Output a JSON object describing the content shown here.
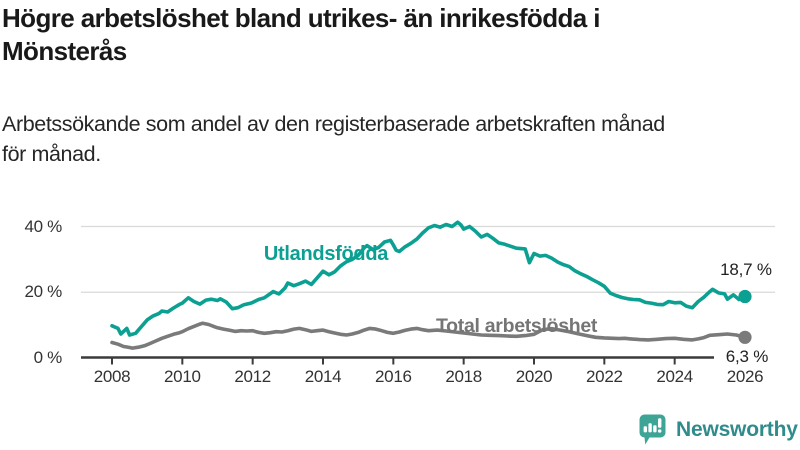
{
  "header": {
    "title": "Högre arbetslöshet bland utrikes- än inrikesfödda i\nMönsterås",
    "subtitle": "Arbetssökande som andel av den registerbaserade arbetskraften månad\nför månad."
  },
  "colors": {
    "series_foreign_born": "#0ba092",
    "series_total": "#7a7a7a",
    "gridline": "#d9d9d9",
    "axis": "#3b3b3b",
    "text_dark": "#191919",
    "brand_teal": "#3da496",
    "brand_text": "#2f8b8c"
  },
  "chart_data": {
    "type": "line",
    "title": "Högre arbetslöshet bland utrikes- än inrikesfödda i Mönsterås",
    "subtitle": "Arbetssökande som andel av den registerbaserade arbetskraften månad för månad.",
    "xlabel": "",
    "ylabel": "",
    "grid": "horizontal-only",
    "legend_position": "inline-labels-on-lines",
    "x_axis": {
      "ticks": [
        2008,
        2010,
        2012,
        2014,
        2016,
        2018,
        2020,
        2022,
        2024,
        2026
      ],
      "range": [
        2007.9,
        2026.6
      ]
    },
    "y_axis": {
      "unit": "%",
      "range": [
        0,
        44
      ],
      "ticks": [
        {
          "value": 0,
          "label": "0 %"
        },
        {
          "value": 20,
          "label": "20 %"
        },
        {
          "value": 40,
          "label": "40 %"
        }
      ]
    },
    "series": [
      {
        "name": "Utlandsfödda",
        "color": "#0ba092",
        "end_label": "18,7 %",
        "end_value": 18.7,
        "points": [
          [
            2008.0,
            9.8
          ],
          [
            2008.17,
            9.0
          ],
          [
            2008.25,
            7.3
          ],
          [
            2008.42,
            9.0
          ],
          [
            2008.5,
            7.0
          ],
          [
            2008.67,
            7.5
          ],
          [
            2008.83,
            9.5
          ],
          [
            2009.0,
            11.6
          ],
          [
            2009.17,
            12.8
          ],
          [
            2009.33,
            13.5
          ],
          [
            2009.42,
            14.3
          ],
          [
            2009.58,
            14.0
          ],
          [
            2009.75,
            15.2
          ],
          [
            2009.92,
            16.3
          ],
          [
            2010.0,
            16.7
          ],
          [
            2010.17,
            18.3
          ],
          [
            2010.33,
            17.2
          ],
          [
            2010.5,
            16.4
          ],
          [
            2010.67,
            17.6
          ],
          [
            2010.83,
            17.9
          ],
          [
            2011.0,
            17.5
          ],
          [
            2011.08,
            18.0
          ],
          [
            2011.25,
            17.0
          ],
          [
            2011.42,
            15.0
          ],
          [
            2011.58,
            15.3
          ],
          [
            2011.75,
            16.2
          ],
          [
            2011.92,
            16.6
          ],
          [
            2012.0,
            16.9
          ],
          [
            2012.17,
            17.8
          ],
          [
            2012.33,
            18.3
          ],
          [
            2012.5,
            19.6
          ],
          [
            2012.58,
            20.2
          ],
          [
            2012.75,
            19.5
          ],
          [
            2012.92,
            21.3
          ],
          [
            2013.0,
            22.8
          ],
          [
            2013.17,
            22.0
          ],
          [
            2013.33,
            22.6
          ],
          [
            2013.5,
            23.4
          ],
          [
            2013.67,
            22.4
          ],
          [
            2013.83,
            24.3
          ],
          [
            2014.0,
            26.4
          ],
          [
            2014.17,
            25.3
          ],
          [
            2014.33,
            26.2
          ],
          [
            2014.5,
            28.0
          ],
          [
            2014.67,
            29.3
          ],
          [
            2014.83,
            30.0
          ],
          [
            2015.0,
            31.2
          ],
          [
            2015.17,
            33.5
          ],
          [
            2015.25,
            34.2
          ],
          [
            2015.42,
            33.0
          ],
          [
            2015.58,
            33.6
          ],
          [
            2015.75,
            35.3
          ],
          [
            2015.92,
            35.8
          ],
          [
            2016.0,
            34.4
          ],
          [
            2016.08,
            32.8
          ],
          [
            2016.17,
            32.4
          ],
          [
            2016.33,
            33.8
          ],
          [
            2016.5,
            34.9
          ],
          [
            2016.67,
            36.2
          ],
          [
            2016.83,
            38.0
          ],
          [
            2017.0,
            39.6
          ],
          [
            2017.17,
            40.3
          ],
          [
            2017.33,
            39.8
          ],
          [
            2017.5,
            40.6
          ],
          [
            2017.67,
            40.0
          ],
          [
            2017.83,
            41.3
          ],
          [
            2017.92,
            40.5
          ],
          [
            2018.0,
            39.2
          ],
          [
            2018.17,
            40.0
          ],
          [
            2018.33,
            38.6
          ],
          [
            2018.5,
            36.8
          ],
          [
            2018.67,
            37.6
          ],
          [
            2018.83,
            36.4
          ],
          [
            2019.0,
            35.0
          ],
          [
            2019.17,
            34.6
          ],
          [
            2019.33,
            34.0
          ],
          [
            2019.5,
            33.4
          ],
          [
            2019.75,
            33.2
          ],
          [
            2019.87,
            29.0
          ],
          [
            2020.0,
            31.8
          ],
          [
            2020.17,
            31.0
          ],
          [
            2020.33,
            31.2
          ],
          [
            2020.5,
            30.4
          ],
          [
            2020.67,
            29.2
          ],
          [
            2020.83,
            28.4
          ],
          [
            2021.0,
            27.8
          ],
          [
            2021.17,
            26.5
          ],
          [
            2021.33,
            25.6
          ],
          [
            2021.5,
            24.8
          ],
          [
            2021.67,
            23.8
          ],
          [
            2021.83,
            22.9
          ],
          [
            2022.0,
            21.8
          ],
          [
            2022.17,
            19.7
          ],
          [
            2022.33,
            19.0
          ],
          [
            2022.5,
            18.4
          ],
          [
            2022.67,
            18.0
          ],
          [
            2022.83,
            17.8
          ],
          [
            2023.0,
            17.7
          ],
          [
            2023.17,
            16.9
          ],
          [
            2023.33,
            16.7
          ],
          [
            2023.5,
            16.3
          ],
          [
            2023.67,
            16.2
          ],
          [
            2023.83,
            17.2
          ],
          [
            2024.0,
            16.8
          ],
          [
            2024.17,
            16.9
          ],
          [
            2024.33,
            15.8
          ],
          [
            2024.5,
            15.3
          ],
          [
            2024.67,
            17.2
          ],
          [
            2024.83,
            18.5
          ],
          [
            2025.0,
            20.2
          ],
          [
            2025.08,
            20.9
          ],
          [
            2025.25,
            19.8
          ],
          [
            2025.42,
            19.5
          ],
          [
            2025.5,
            17.9
          ],
          [
            2025.67,
            19.2
          ],
          [
            2025.83,
            17.8
          ],
          [
            2026.0,
            18.7
          ]
        ]
      },
      {
        "name": "Total arbetslöshet",
        "color": "#7a7a7a",
        "end_label": "6,3 %",
        "end_value": 6.3,
        "points": [
          [
            2008.0,
            4.7
          ],
          [
            2008.17,
            4.2
          ],
          [
            2008.33,
            3.5
          ],
          [
            2008.5,
            3.2
          ],
          [
            2008.58,
            3.0
          ],
          [
            2008.75,
            3.3
          ],
          [
            2008.92,
            3.7
          ],
          [
            2009.08,
            4.4
          ],
          [
            2009.25,
            5.2
          ],
          [
            2009.42,
            6.0
          ],
          [
            2009.58,
            6.6
          ],
          [
            2009.75,
            7.2
          ],
          [
            2009.92,
            7.7
          ],
          [
            2010.0,
            8.0
          ],
          [
            2010.17,
            8.9
          ],
          [
            2010.33,
            9.6
          ],
          [
            2010.5,
            10.3
          ],
          [
            2010.58,
            10.6
          ],
          [
            2010.75,
            10.2
          ],
          [
            2010.92,
            9.5
          ],
          [
            2011.0,
            9.2
          ],
          [
            2011.17,
            8.8
          ],
          [
            2011.33,
            8.5
          ],
          [
            2011.5,
            8.1
          ],
          [
            2011.67,
            8.3
          ],
          [
            2011.83,
            8.2
          ],
          [
            2012.0,
            8.3
          ],
          [
            2012.17,
            7.8
          ],
          [
            2012.33,
            7.5
          ],
          [
            2012.5,
            7.7
          ],
          [
            2012.67,
            8.0
          ],
          [
            2012.83,
            7.9
          ],
          [
            2013.0,
            8.3
          ],
          [
            2013.17,
            8.8
          ],
          [
            2013.33,
            9.0
          ],
          [
            2013.5,
            8.6
          ],
          [
            2013.67,
            8.1
          ],
          [
            2013.83,
            8.3
          ],
          [
            2014.0,
            8.5
          ],
          [
            2014.17,
            8.0
          ],
          [
            2014.33,
            7.6
          ],
          [
            2014.5,
            7.2
          ],
          [
            2014.67,
            7.0
          ],
          [
            2014.83,
            7.3
          ],
          [
            2015.0,
            7.8
          ],
          [
            2015.17,
            8.5
          ],
          [
            2015.33,
            9.0
          ],
          [
            2015.5,
            8.8
          ],
          [
            2015.67,
            8.3
          ],
          [
            2015.83,
            7.8
          ],
          [
            2016.0,
            7.5
          ],
          [
            2016.17,
            7.9
          ],
          [
            2016.33,
            8.4
          ],
          [
            2016.5,
            8.8
          ],
          [
            2016.67,
            9.0
          ],
          [
            2016.83,
            8.6
          ],
          [
            2017.0,
            8.3
          ],
          [
            2017.25,
            8.5
          ],
          [
            2017.5,
            8.2
          ],
          [
            2017.75,
            7.9
          ],
          [
            2018.0,
            7.6
          ],
          [
            2018.25,
            7.3
          ],
          [
            2018.5,
            7.0
          ],
          [
            2018.75,
            6.9
          ],
          [
            2019.0,
            6.8
          ],
          [
            2019.25,
            6.7
          ],
          [
            2019.5,
            6.6
          ],
          [
            2019.75,
            6.8
          ],
          [
            2020.0,
            7.2
          ],
          [
            2020.25,
            8.6
          ],
          [
            2020.5,
            8.9
          ],
          [
            2020.75,
            8.5
          ],
          [
            2021.0,
            8.0
          ],
          [
            2021.25,
            7.4
          ],
          [
            2021.5,
            6.8
          ],
          [
            2021.75,
            6.3
          ],
          [
            2022.0,
            6.1
          ],
          [
            2022.25,
            6.0
          ],
          [
            2022.42,
            5.9
          ],
          [
            2022.58,
            6.0
          ],
          [
            2022.75,
            5.8
          ],
          [
            2023.0,
            5.6
          ],
          [
            2023.25,
            5.5
          ],
          [
            2023.5,
            5.7
          ],
          [
            2023.75,
            5.9
          ],
          [
            2024.0,
            6.0
          ],
          [
            2024.25,
            5.7
          ],
          [
            2024.5,
            5.5
          ],
          [
            2024.67,
            5.8
          ],
          [
            2024.83,
            6.2
          ],
          [
            2025.0,
            6.9
          ],
          [
            2025.25,
            7.1
          ],
          [
            2025.5,
            7.3
          ],
          [
            2025.75,
            7.0
          ],
          [
            2026.0,
            6.3
          ]
        ]
      }
    ]
  },
  "footer": {
    "brand": "Newsworthy"
  }
}
